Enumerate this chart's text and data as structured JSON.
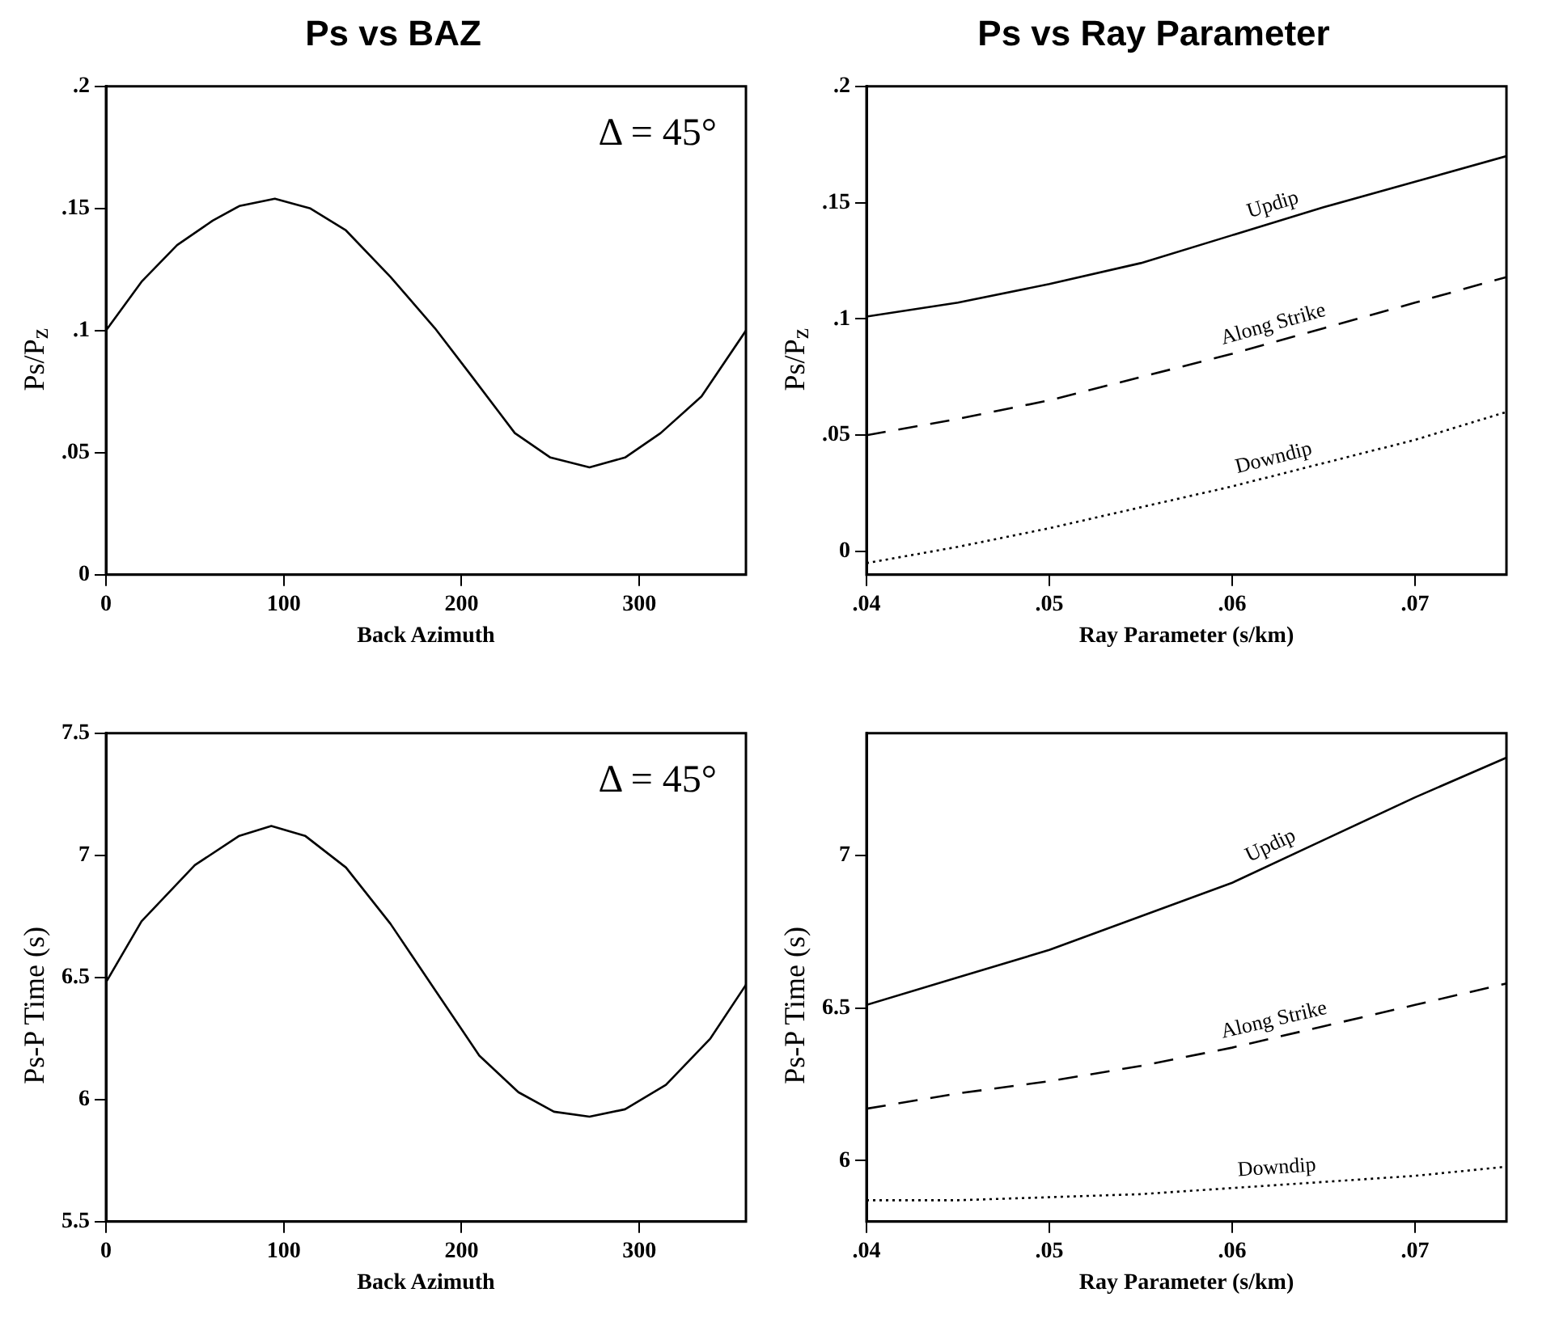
{
  "chart_data": [
    {
      "type": "line",
      "title": "Ps vs BAZ",
      "xlabel": "Back Azimuth",
      "ylabel": "Ps/P$_{z}$",
      "annotations": [
        "Δ = 45°"
      ],
      "legend": false,
      "xlim": [
        0,
        360
      ],
      "xticks": [
        0,
        100,
        200,
        300
      ],
      "ylim": [
        0,
        0.2
      ],
      "yticks": [
        0,
        {
          "value": 0.05,
          "label": ".05"
        },
        {
          "value": 0.1,
          "label": ".1"
        },
        {
          "value": 0.15,
          "label": ".15"
        },
        {
          "value": 0.2,
          "label": ".2"
        }
      ],
      "series": [
        {
          "color": "#000000",
          "line_style": "solid",
          "x": [
            0,
            20,
            40,
            60,
            75,
            95,
            115,
            135,
            160,
            185,
            205,
            230,
            250,
            272,
            292,
            312,
            335,
            360
          ],
          "values": [
            0.1,
            0.12,
            0.135,
            0.145,
            0.151,
            0.154,
            0.15,
            0.141,
            0.122,
            0.101,
            0.082,
            0.058,
            0.048,
            0.044,
            0.048,
            0.058,
            0.073,
            0.1
          ]
        }
      ]
    },
    {
      "type": "line",
      "title": "Ps vs Ray Parameter",
      "xlabel": "Ray Parameter (s/km)",
      "ylabel": "Ps/P$_{z}$",
      "legend": false,
      "x": [
        0.04,
        0.045,
        0.05,
        0.055,
        0.06,
        0.065,
        0.07,
        0.075
      ],
      "xlim": [
        0.04,
        0.075
      ],
      "xticks": [
        {
          "value": 0.04,
          "label": ".04"
        },
        {
          "value": 0.05,
          "label": ".05"
        },
        {
          "value": 0.06,
          "label": ".06"
        },
        {
          "value": 0.07,
          "label": ".07"
        }
      ],
      "ylim": [
        -0.01,
        0.2
      ],
      "yticks": [
        0,
        {
          "value": 0.05,
          "label": ".05"
        },
        {
          "value": 0.1,
          "label": ".1"
        },
        {
          "value": 0.15,
          "label": ".15"
        },
        {
          "value": 0.2,
          "label": ".2"
        }
      ],
      "series": [
        {
          "name": "Updip",
          "color": "#000000",
          "line_style": "solid",
          "values": [
            0.101,
            0.107,
            0.115,
            0.124,
            0.136,
            0.148,
            0.159,
            0.17
          ]
        },
        {
          "name": "Along Strike",
          "color": "#000000",
          "line_style": "dashed",
          "values": [
            0.05,
            0.057,
            0.065,
            0.075,
            0.085,
            0.096,
            0.107,
            0.118
          ]
        },
        {
          "name": "Downdip",
          "color": "#000000",
          "line_style": "dotted",
          "values": [
            -0.005,
            0.002,
            0.01,
            0.019,
            0.028,
            0.038,
            0.048,
            0.06
          ]
        }
      ]
    },
    {
      "type": "line",
      "xlabel": "Back Azimuth",
      "ylabel": "Ps-P Time (s)",
      "annotations": [
        "Δ = 45°"
      ],
      "legend": false,
      "xlim": [
        0,
        360
      ],
      "xticks": [
        0,
        100,
        200,
        300
      ],
      "ylim": [
        5.5,
        7.5
      ],
      "yticks": [
        5.5,
        6,
        6.5,
        7,
        7.5
      ],
      "series": [
        {
          "color": "#000000",
          "line_style": "solid",
          "x": [
            0,
            20,
            50,
            75,
            93,
            112,
            135,
            160,
            185,
            210,
            232,
            252,
            272,
            292,
            315,
            340,
            360
          ],
          "values": [
            6.48,
            6.73,
            6.96,
            7.08,
            7.12,
            7.08,
            6.95,
            6.72,
            6.45,
            6.18,
            6.03,
            5.95,
            5.93,
            5.96,
            6.06,
            6.25,
            6.47
          ]
        }
      ]
    },
    {
      "type": "line",
      "xlabel": "Ray Parameter (s/km)",
      "ylabel": "Ps-P Time (s)",
      "legend": false,
      "x": [
        0.04,
        0.045,
        0.05,
        0.055,
        0.06,
        0.065,
        0.07,
        0.075
      ],
      "xlim": [
        0.04,
        0.075
      ],
      "xticks": [
        {
          "value": 0.04,
          "label": ".04"
        },
        {
          "value": 0.05,
          "label": ".05"
        },
        {
          "value": 0.06,
          "label": ".06"
        },
        {
          "value": 0.07,
          "label": ".07"
        }
      ],
      "ylim": [
        5.8,
        7.4
      ],
      "yticks": [
        6,
        6.5,
        7
      ],
      "series": [
        {
          "name": "Updip",
          "color": "#000000",
          "line_style": "solid",
          "values": [
            6.51,
            6.6,
            6.69,
            6.8,
            6.91,
            7.05,
            7.19,
            7.32
          ]
        },
        {
          "name": "Along Strike",
          "color": "#000000",
          "line_style": "dashed",
          "values": [
            6.17,
            6.22,
            6.26,
            6.31,
            6.37,
            6.44,
            6.51,
            6.58
          ]
        },
        {
          "name": "Downdip",
          "color": "#000000",
          "line_style": "dotted",
          "values": [
            5.87,
            5.87,
            5.88,
            5.89,
            5.91,
            5.93,
            5.95,
            5.98
          ]
        }
      ]
    }
  ]
}
